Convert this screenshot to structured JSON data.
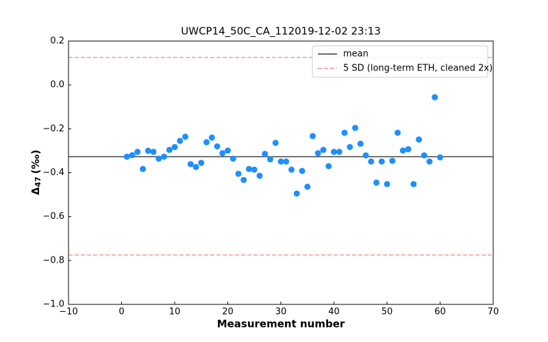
{
  "chart_data": {
    "type": "scatter",
    "title": "UWCP14_50C_CA_112019-12-02 23:13",
    "xlabel": "Measurement number",
    "ylabel": {
      "symbol": "Δ",
      "subscript": "47",
      "unit": "(‰)"
    },
    "xlim": [
      -10,
      70
    ],
    "ylim": [
      -1.0,
      0.2
    ],
    "xticks": [
      {
        "value": -10,
        "label": "−10"
      },
      0,
      10,
      20,
      30,
      40,
      50,
      60,
      70
    ],
    "yticks": [
      {
        "value": -1.0,
        "label": "−1.0"
      },
      {
        "value": -0.8,
        "label": "−0.8"
      },
      {
        "value": -0.6,
        "label": "−0.6"
      },
      {
        "value": -0.4,
        "label": "−0.4"
      },
      {
        "value": -0.2,
        "label": "−0.2"
      },
      {
        "value": 0.0,
        "label": "0.0"
      },
      {
        "value": 0.2,
        "label": "0.2"
      }
    ],
    "series": [
      {
        "color": "#1e8fff",
        "x": [
          1,
          2,
          3,
          4,
          5,
          6,
          7,
          8,
          9,
          10,
          11,
          12,
          13,
          14,
          15,
          16,
          17,
          18,
          19,
          20,
          21,
          22,
          23,
          24,
          25,
          26,
          27,
          28,
          29,
          30,
          31,
          32,
          33,
          34,
          35,
          36,
          37,
          38,
          39,
          40,
          41,
          42,
          43,
          44,
          45,
          46,
          47,
          48,
          49,
          50,
          51,
          52,
          53,
          54,
          55,
          56,
          57,
          58,
          59,
          60
        ],
        "values": [
          -0.327,
          -0.32,
          -0.305,
          -0.383,
          -0.3,
          -0.305,
          -0.336,
          -0.327,
          -0.296,
          -0.283,
          -0.255,
          -0.236,
          -0.361,
          -0.374,
          -0.355,
          -0.261,
          -0.24,
          -0.28,
          -0.311,
          -0.299,
          -0.336,
          -0.405,
          -0.433,
          -0.383,
          -0.386,
          -0.414,
          -0.314,
          -0.339,
          -0.264,
          -0.349,
          -0.349,
          -0.386,
          -0.495,
          -0.392,
          -0.464,
          -0.233,
          -0.311,
          -0.296,
          -0.37,
          -0.305,
          -0.305,
          -0.218,
          -0.283,
          -0.196,
          -0.268,
          -0.321,
          -0.349,
          -0.445,
          -0.349,
          -0.452,
          -0.346,
          -0.218,
          -0.299,
          -0.293,
          -0.452,
          -0.249,
          -0.321,
          -0.349,
          -0.056,
          -0.33
        ]
      }
    ],
    "hlines": [
      {
        "name": "mean",
        "values": [
          -0.327
        ],
        "color": "#333333",
        "style": "solid"
      },
      {
        "name": "5 SD (long-term ETH, cleaned 2x)",
        "values": [
          0.125,
          -0.775
        ],
        "color": "#f09090",
        "style": "dashed"
      }
    ],
    "legend": "upper right"
  }
}
